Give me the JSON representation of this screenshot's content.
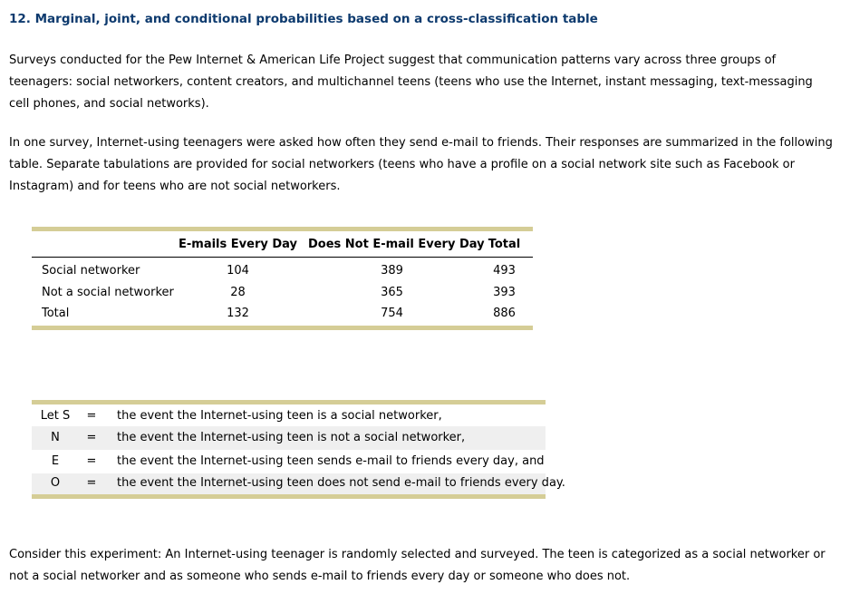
{
  "page": {
    "title": "12. Marginal, joint, and conditional probabilities based on a cross-classification table",
    "paragraphs": {
      "intro": "Surveys conducted for the Pew Internet & American Life Project suggest that communication patterns vary across three groups of teenagers: social networkers, content creators, and multichannel teens (teens who use the Internet, instant messaging, text-messaging cell phones, and social networks).",
      "survey": "In one survey, Internet-using teenagers were asked how often they send e-mail to friends. Their responses are summarized in the following table. Separate tabulations are provided for social networkers (teens who have a profile on a social network site such as Facebook or Instagram) and for teens who are not social networkers.",
      "experiment": "Consider this experiment: An Internet-using teenager is randomly selected and surveyed. The teen is categorized as a social networker or not a social networker and as someone who sends e-mail to friends every day or someone who does not."
    }
  },
  "crosstab": {
    "headers": [
      "",
      "E-mails Every Day",
      "Does Not E-mail Every Day",
      "Total"
    ],
    "rows": [
      {
        "label": "Social networker",
        "emails_every_day": "104",
        "does_not_email": "389",
        "total": "493"
      },
      {
        "label": "Not a social networker",
        "emails_every_day": "28",
        "does_not_email": "365",
        "total": "393"
      },
      {
        "label": "Total",
        "emails_every_day": "132",
        "does_not_email": "754",
        "total": "886"
      }
    ]
  },
  "events": {
    "rows": [
      {
        "symbol": "Let S",
        "eq": "=",
        "description": "the event the Internet-using teen is a social networker,"
      },
      {
        "symbol": "N",
        "eq": "=",
        "description": "the event the Internet-using teen is not a social networker,"
      },
      {
        "symbol": "E",
        "eq": "=",
        "description": "the event the Internet-using teen sends e-mail to friends every day, and"
      },
      {
        "symbol": "O",
        "eq": "=",
        "description": "the event the Internet-using teen does not send e-mail to friends every day."
      }
    ]
  },
  "colors": {
    "accent_bar": "#d5cd96",
    "heading": "#0d3a6e",
    "row_stripe": "#efefef",
    "header_rule": "#000000"
  }
}
